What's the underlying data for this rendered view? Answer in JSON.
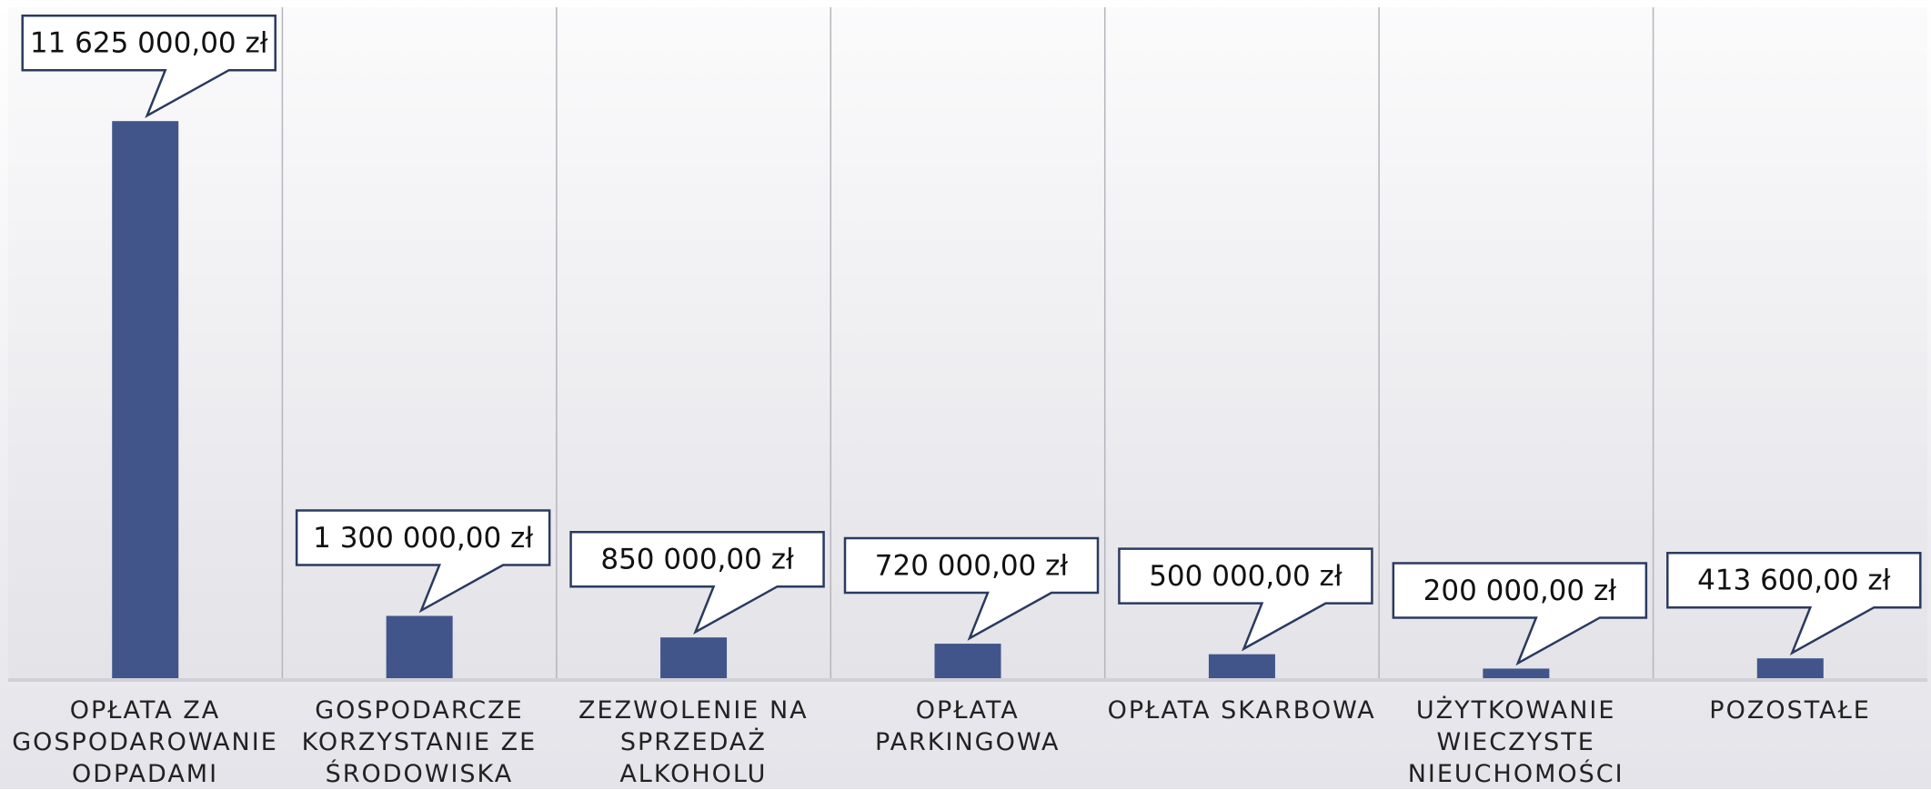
{
  "chart_data": {
    "type": "bar",
    "categories": [
      "OPŁATA ZA GOSPODAROWANIE ODPADAMI",
      "GOSPODARCZE KORZYSTANIE ZE ŚRODOWISKA",
      "ZEZWOLENIE NA SPRZEDAŻ ALKOHOLU",
      "OPŁATA PARKINGOWA",
      "OPŁATA SKARBOWA",
      "UŻYTKOWANIE WIECZYSTE NIEUCHOMOŚCI",
      "POZOSTAŁE"
    ],
    "values": [
      11625000,
      1300000,
      850000,
      720000,
      500000,
      200000,
      413600
    ],
    "value_labels": [
      "11 625 000,00 zł",
      "1 300 000,00 zł",
      "850 000,00 zł",
      "720 000,00 zł",
      "500 000,00 zł",
      "200 000,00 zł",
      "413 600,00 zł"
    ],
    "color": "#41558a",
    "ylim": [
      0,
      14000000
    ]
  }
}
